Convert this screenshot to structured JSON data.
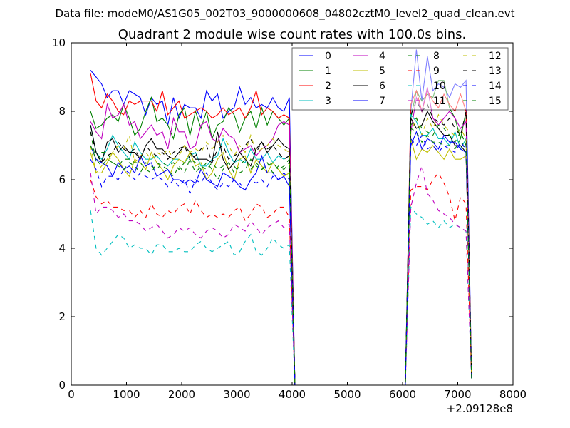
{
  "chart_data": {
    "type": "line",
    "suptitle": "Data file: modeM0/AS1G05_002T03_9000000608_04802cztM0_level2_quad_clean.evt",
    "title": "Quadrant 2 module wise count rates with 100.0s bins.",
    "xlabel": "",
    "ylabel": "",
    "x_offset_label": "+2.09128e8",
    "xlim": [
      0,
      8000
    ],
    "ylim": [
      0,
      10
    ],
    "xticks": [
      "0",
      "1000",
      "2000",
      "3000",
      "4000",
      "5000",
      "6000",
      "7000",
      "8000"
    ],
    "yticks": [
      "0",
      "2",
      "4",
      "6",
      "8",
      "10"
    ],
    "legend_position": "top-right",
    "legend_columns": 4,
    "x_left": {
      "start": 350,
      "step": 100,
      "count": 37
    },
    "x_gap": {
      "start": 4050,
      "step": 100,
      "count": 21,
      "value": 0
    },
    "x_right": {
      "start": 6150,
      "step": 100,
      "count": 12
    },
    "series": [
      {
        "name": "0",
        "color": "#0000ff",
        "dash": false,
        "left": [
          9.2,
          9.0,
          8.8,
          8.4,
          8.6,
          8.6,
          8.2,
          8.6,
          8.5,
          8.4,
          7.9,
          8.4,
          8.2,
          8.3,
          7.6,
          8.4,
          7.8,
          8.2,
          8.1,
          8.1,
          7.8,
          8.6,
          8.3,
          8.5,
          7.8,
          8.0,
          8.1,
          8.7,
          8.2,
          8.4,
          8.1,
          8.2,
          8.1,
          8.4,
          8.1,
          8.0,
          8.4
        ],
        "right": [
          8.0,
          9.8,
          8.3,
          9.6,
          8.6,
          8.8,
          8.7,
          8.4,
          8.8,
          8.7,
          8.9,
          0.2
        ]
      },
      {
        "name": "1",
        "color": "#008000",
        "dash": false,
        "left": [
          8.0,
          7.5,
          7.6,
          7.8,
          7.9,
          7.7,
          8.2,
          7.8,
          7.3,
          7.5,
          8.0,
          8.4,
          7.7,
          7.8,
          7.6,
          7.2,
          7.9,
          8.1,
          7.3,
          8.0,
          7.5,
          8.0,
          7.2,
          7.6,
          7.7,
          8.1,
          7.9,
          7.4,
          7.8,
          8.0,
          7.5,
          8.1,
          7.6,
          8.0,
          7.8,
          7.6,
          7.8
        ],
        "right": [
          7.8,
          8.6,
          8.3,
          8.5,
          8.4,
          8.9,
          8.9,
          8.1,
          7.8,
          7.2,
          8.0,
          0.2
        ]
      },
      {
        "name": "2",
        "color": "#ff0000",
        "dash": false,
        "left": [
          9.1,
          8.3,
          8.1,
          8.5,
          8.3,
          8.0,
          7.9,
          8.3,
          8.2,
          8.3,
          8.3,
          8.3,
          8.0,
          8.6,
          7.9,
          8.1,
          8.3,
          7.8,
          7.9,
          8.0,
          8.1,
          8.0,
          7.8,
          7.9,
          8.1,
          7.9,
          8.0,
          8.1,
          7.8,
          8.1,
          8.6,
          7.9,
          8.1,
          8.0,
          7.8,
          7.9,
          7.8
        ],
        "right": [
          8.2,
          8.6,
          8.0,
          8.6,
          8.3,
          8.1,
          8.5,
          8.2,
          8.0,
          8.5,
          8.0,
          0.2
        ]
      },
      {
        "name": "3",
        "color": "#00bfbf",
        "dash": false,
        "left": [
          7.6,
          6.8,
          6.6,
          6.9,
          7.3,
          7.0,
          6.8,
          6.6,
          7.1,
          6.8,
          6.6,
          6.6,
          6.7,
          6.5,
          6.4,
          6.6,
          6.6,
          6.5,
          6.7,
          6.8,
          6.4,
          6.4,
          6.6,
          6.7,
          7.2,
          6.8,
          6.5,
          6.6,
          6.5,
          6.9,
          6.6,
          6.6,
          6.8,
          6.5,
          6.7,
          6.6,
          6.7
        ],
        "right": [
          7.9,
          7.7,
          7.3,
          7.3,
          7.5,
          7.2,
          7.2,
          7.0,
          7.4,
          6.9,
          7.2,
          0.2
        ]
      },
      {
        "name": "4",
        "color": "#bf00bf",
        "dash": false,
        "left": [
          7.7,
          7.4,
          7.2,
          8.2,
          7.8,
          7.9,
          8.2,
          7.6,
          7.7,
          7.2,
          7.4,
          7.6,
          7.3,
          7.4,
          6.9,
          7.8,
          7.4,
          7.4,
          6.9,
          7.0,
          7.6,
          7.7,
          7.2,
          7.1,
          7.5,
          7.3,
          7.2,
          6.8,
          6.9,
          7.0,
          6.7,
          6.9,
          7.0,
          7.2,
          7.6,
          7.7,
          7.6
        ],
        "right": [
          7.4,
          8.4,
          8.0,
          8.7,
          7.8,
          7.6,
          7.8,
          8.0,
          7.8,
          7.5,
          7.7,
          0.2
        ]
      },
      {
        "name": "5",
        "color": "#bfbf00",
        "dash": false,
        "left": [
          6.8,
          6.2,
          6.2,
          6.5,
          6.8,
          6.6,
          6.3,
          6.1,
          6.6,
          6.5,
          6.3,
          6.8,
          6.5,
          6.3,
          6.0,
          6.4,
          6.6,
          6.5,
          6.8,
          6.4,
          6.5,
          6.0,
          6.2,
          6.6,
          6.8,
          6.3,
          6.0,
          6.6,
          6.7,
          6.2,
          6.6,
          6.4,
          6.2,
          6.5,
          6.3,
          6.1,
          6.2
        ],
        "right": [
          7.2,
          6.6,
          6.9,
          6.8,
          7.0,
          6.8,
          6.6,
          6.9,
          6.6,
          6.6,
          6.7,
          0.2
        ]
      },
      {
        "name": "6",
        "color": "#000000",
        "dash": false,
        "left": [
          7.6,
          6.8,
          6.5,
          7.1,
          7.2,
          6.8,
          7.0,
          6.8,
          6.8,
          6.6,
          7.0,
          7.2,
          6.9,
          6.9,
          6.7,
          6.6,
          6.8,
          7.0,
          6.8,
          6.6,
          6.6,
          6.6,
          6.5,
          7.4,
          6.6,
          6.3,
          6.5,
          6.8,
          6.6,
          6.4,
          6.9,
          7.1,
          6.8,
          7.0,
          7.2,
          7.0,
          6.9
        ],
        "right": [
          7.8,
          7.5,
          7.6,
          8.0,
          7.7,
          7.5,
          7.3,
          7.3,
          7.0,
          7.0,
          6.8,
          0.2
        ]
      },
      {
        "name": "7",
        "color": "#0000ff",
        "dash": false,
        "left": [
          7.0,
          6.6,
          6.5,
          6.4,
          6.1,
          6.5,
          6.3,
          6.4,
          6.2,
          6.7,
          6.4,
          6.5,
          6.1,
          6.2,
          6.3,
          6.0,
          6.0,
          5.9,
          6.0,
          5.9,
          6.3,
          6.0,
          5.9,
          5.8,
          6.2,
          6.1,
          6.0,
          5.8,
          5.7,
          6.0,
          6.2,
          6.7,
          6.2,
          6.2,
          6.0,
          6.1,
          5.8
        ],
        "right": [
          7.0,
          7.4,
          6.9,
          7.2,
          7.1,
          6.9,
          7.3,
          7.1,
          7.1,
          6.9,
          6.8,
          0.2
        ]
      },
      {
        "name": "8",
        "color": "#008000",
        "dash": true,
        "left": [
          7.4,
          6.5,
          6.8,
          6.8,
          6.5,
          6.4,
          6.6,
          6.6,
          6.5,
          6.5,
          6.3,
          6.2,
          6.5,
          6.4,
          6.3,
          6.1,
          6.4,
          6.2,
          6.6,
          6.5,
          6.3,
          6.5,
          6.3,
          6.0,
          6.3,
          6.5,
          6.4,
          6.2,
          6.3,
          6.6,
          6.4,
          6.3,
          6.5,
          6.2,
          6.4,
          6.3,
          6.5
        ],
        "right": [
          7.5,
          7.4,
          7.1,
          7.3,
          7.1,
          7.1,
          7.0,
          7.0,
          6.9,
          7.2,
          6.8,
          0.2
        ]
      },
      {
        "name": "9",
        "color": "#ff0000",
        "dash": true,
        "left": [
          6.0,
          5.5,
          5.3,
          5.4,
          5.2,
          5.2,
          5.1,
          5.1,
          4.9,
          5.1,
          4.9,
          5.3,
          5.0,
          4.9,
          5.1,
          5.0,
          5.2,
          5.3,
          5.0,
          5.4,
          5.1,
          4.9,
          5.0,
          4.9,
          5.0,
          4.9,
          5.1,
          5.2,
          4.8,
          5.0,
          5.3,
          5.2,
          4.9,
          5.0,
          5.2,
          5.2,
          4.9
        ],
        "right": [
          5.7,
          5.8,
          5.8,
          5.7,
          6.0,
          6.2,
          5.9,
          5.5,
          4.8,
          5.5,
          5.3,
          0.2
        ]
      },
      {
        "name": "10",
        "color": "#00bfbf",
        "dash": true,
        "left": [
          5.1,
          4.0,
          3.8,
          4.0,
          4.2,
          4.4,
          4.3,
          4.0,
          4.1,
          4.0,
          4.0,
          3.8,
          4.1,
          4.1,
          3.9,
          3.9,
          4.0,
          3.9,
          3.9,
          4.1,
          4.2,
          4.0,
          3.9,
          4.0,
          4.1,
          4.2,
          3.8,
          3.9,
          4.2,
          4.4,
          3.9,
          3.8,
          4.0,
          4.3,
          4.1,
          4.0,
          4.1
        ],
        "right": [
          5.2,
          5.0,
          4.9,
          4.7,
          4.8,
          4.6,
          4.8,
          4.6,
          4.7,
          4.6,
          4.5,
          0.2
        ]
      },
      {
        "name": "11",
        "color": "#bf00bf",
        "dash": true,
        "left": [
          6.2,
          5.0,
          5.2,
          5.2,
          5.1,
          4.9,
          5.0,
          4.8,
          4.8,
          4.7,
          4.5,
          4.6,
          4.7,
          4.5,
          4.3,
          4.4,
          4.6,
          4.5,
          4.6,
          4.4,
          4.3,
          4.5,
          4.6,
          4.5,
          4.3,
          4.4,
          4.7,
          4.6,
          4.5,
          4.8,
          4.6,
          4.4,
          4.6,
          4.7,
          4.8,
          4.6,
          4.7
        ],
        "right": [
          5.2,
          5.9,
          6.4,
          5.6,
          5.4,
          5.1,
          5.0,
          4.9,
          4.7,
          4.6,
          4.5,
          0.2
        ]
      },
      {
        "name": "12",
        "color": "#bfbf00",
        "dash": true,
        "left": [
          7.0,
          6.2,
          6.4,
          6.6,
          6.8,
          7.0,
          6.9,
          7.3,
          6.5,
          6.7,
          6.8,
          6.6,
          6.8,
          6.7,
          6.9,
          6.6,
          6.7,
          7.0,
          6.8,
          6.9,
          6.8,
          7.1,
          6.9,
          7.1,
          7.3,
          7.0,
          6.7,
          7.0,
          6.8,
          7.3,
          6.8,
          6.9,
          7.0,
          7.2,
          7.0,
          6.9,
          6.8
        ],
        "right": [
          7.4,
          7.8,
          7.3,
          7.8,
          7.5,
          7.9,
          7.6,
          7.4,
          7.3,
          7.5,
          7.2,
          0.2
        ]
      },
      {
        "name": "13",
        "color": "#000000",
        "dash": true,
        "left": [
          7.4,
          6.8,
          6.5,
          6.7,
          6.8,
          7.1,
          6.9,
          6.8,
          6.9,
          6.6,
          7.0,
          6.8,
          6.7,
          6.8,
          6.6,
          6.8,
          6.9,
          7.0,
          6.6,
          6.7,
          6.9,
          7.0,
          6.5,
          6.9,
          7.0,
          6.6,
          6.7,
          6.8,
          7.0,
          7.2,
          6.8,
          7.1,
          6.9,
          7.0,
          6.8,
          6.6,
          6.7
        ],
        "right": [
          7.9,
          8.3,
          8.0,
          8.2,
          7.8,
          7.7,
          7.6,
          7.8,
          7.5,
          7.3,
          8.0,
          0.2
        ]
      },
      {
        "name": "14",
        "color": "#0000ff",
        "dash": true,
        "left": [
          6.6,
          6.3,
          5.8,
          6.1,
          6.1,
          6.0,
          6.3,
          6.2,
          6.0,
          6.2,
          6.1,
          6.0,
          6.1,
          6.0,
          5.8,
          6.0,
          5.8,
          6.0,
          5.6,
          6.0,
          5.9,
          6.2,
          5.9,
          5.7,
          5.9,
          5.8,
          6.0,
          5.9,
          5.7,
          6.0,
          5.9,
          6.0,
          5.8,
          6.1,
          6.0,
          6.2,
          6.0
        ],
        "right": [
          7.2,
          7.0,
          7.3,
          6.9,
          7.0,
          6.8,
          7.0,
          6.9,
          6.8,
          7.1,
          6.9,
          0.2
        ]
      },
      {
        "name": "15",
        "color": "#008000",
        "dash": true,
        "left": [
          7.0,
          6.6,
          6.4,
          6.6,
          6.5,
          6.4,
          6.3,
          6.5,
          6.4,
          6.2,
          6.5,
          6.4,
          6.3,
          6.5,
          6.4,
          6.5,
          6.3,
          6.5,
          6.6,
          6.2,
          6.4,
          6.3,
          6.5,
          6.3,
          6.4,
          6.5,
          6.2,
          6.4,
          6.6,
          6.3,
          6.5,
          6.3,
          6.4,
          6.5,
          6.3,
          6.4,
          6.6
        ],
        "right": [
          7.6,
          7.8,
          7.5,
          7.4,
          7.3,
          7.6,
          7.5,
          7.3,
          7.1,
          7.4,
          7.0,
          0.2
        ]
      }
    ]
  }
}
